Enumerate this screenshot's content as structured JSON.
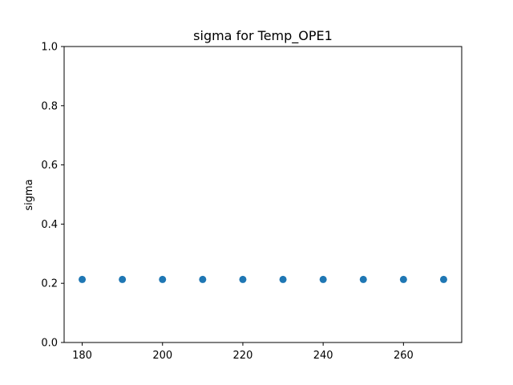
{
  "chart_data": {
    "type": "scatter",
    "title": "sigma for Temp_OPE1",
    "xlabel": "",
    "ylabel": "sigma",
    "x": [
      180,
      190,
      200,
      210,
      220,
      230,
      240,
      250,
      260,
      270
    ],
    "y": [
      0.213,
      0.213,
      0.213,
      0.213,
      0.213,
      0.213,
      0.213,
      0.213,
      0.213,
      0.213
    ],
    "xlim": [
      175.5,
      274.5
    ],
    "ylim": [
      0.0,
      1.0
    ],
    "xticks": [
      "180",
      "200",
      "220",
      "240",
      "260"
    ],
    "yticks": [
      "0.0",
      "0.2",
      "0.4",
      "0.6",
      "0.8",
      "1.0"
    ],
    "marker_color": "#1f77b4",
    "grid": false
  }
}
